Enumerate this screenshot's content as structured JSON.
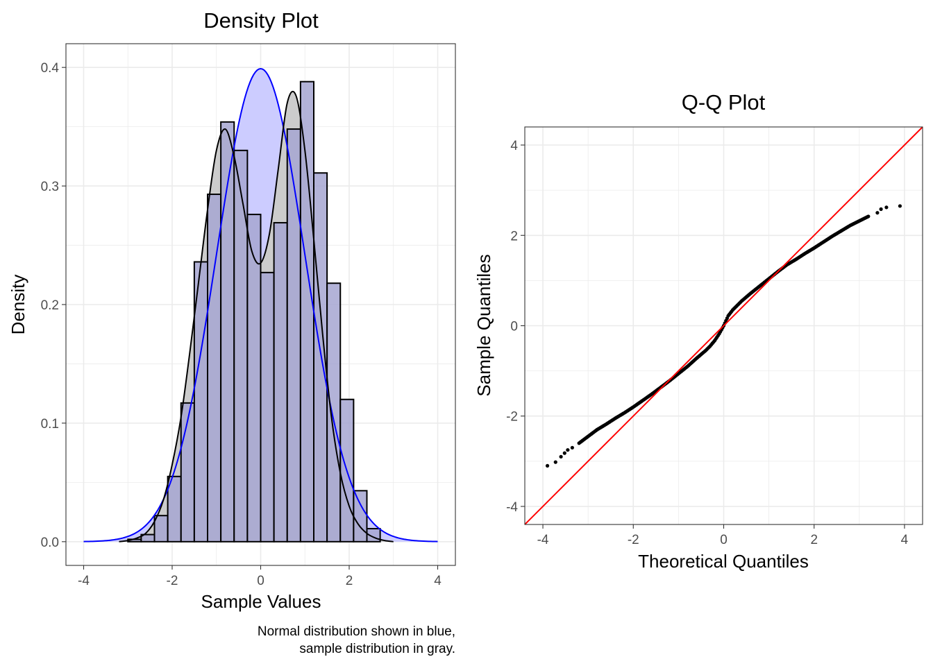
{
  "colors": {
    "normal_curve": "#0000ff",
    "normal_fill": "#ccccff",
    "sample_fill": "#cccccc",
    "histogram_fill": "#a6a6d1",
    "reference_line": "#ff0000",
    "points": "#000000",
    "grid": "#ebebeb"
  },
  "chart_data": [
    {
      "type": "bar",
      "title": "Density Plot",
      "xlabel": "Sample Values",
      "ylabel": "Density",
      "caption_lines": [
        "Normal distribution shown in blue,",
        "sample distribution in gray."
      ],
      "xlim": [
        -4.4,
        4.4
      ],
      "ylim": [
        -0.02,
        0.42
      ],
      "x_ticks": [
        -4,
        -2,
        0,
        2,
        4
      ],
      "x_tick_labels": [
        "-4",
        "-2",
        "0",
        "2",
        "4"
      ],
      "y_ticks": [
        0,
        0.1,
        0.2,
        0.3,
        0.4
      ],
      "y_tick_labels": [
        "0.0",
        "0.1",
        "0.2",
        "0.3",
        "0.4"
      ],
      "grid": true,
      "bin_width": 0.3,
      "bin_centers": [
        -2.85,
        -2.55,
        -2.25,
        -1.95,
        -1.65,
        -1.35,
        -1.05,
        -0.75,
        -0.45,
        -0.15,
        0.15,
        0.45,
        0.75,
        1.05,
        1.35,
        1.65,
        1.95,
        2.25,
        2.55
      ],
      "bin_densities": [
        0.002,
        0.006,
        0.022,
        0.055,
        0.117,
        0.236,
        0.293,
        0.354,
        0.33,
        0.276,
        0.227,
        0.269,
        0.348,
        0.388,
        0.311,
        0.218,
        0.12,
        0.043,
        0.011
      ],
      "sample_density": {
        "x": [
          -3.2,
          -3.0,
          -2.8,
          -2.6,
          -2.4,
          -2.2,
          -2.0,
          -1.8,
          -1.6,
          -1.4,
          -1.2,
          -1.0,
          -0.8,
          -0.6,
          -0.4,
          -0.2,
          0.0,
          0.2,
          0.4,
          0.6,
          0.8,
          1.0,
          1.2,
          1.4,
          1.6,
          1.8,
          2.0,
          2.2,
          2.4,
          2.6,
          2.8,
          3.0
        ],
        "y": [
          0.0,
          0.001,
          0.003,
          0.007,
          0.017,
          0.035,
          0.065,
          0.105,
          0.16,
          0.22,
          0.28,
          0.33,
          0.348,
          0.325,
          0.285,
          0.245,
          0.235,
          0.26,
          0.315,
          0.37,
          0.376,
          0.33,
          0.255,
          0.175,
          0.105,
          0.058,
          0.03,
          0.015,
          0.007,
          0.003,
          0.001,
          0.0
        ]
      },
      "normal_density": {
        "mean": 0,
        "sd": 1,
        "x_range": [
          -4,
          4
        ]
      }
    },
    {
      "type": "scatter",
      "title": "Q-Q Plot",
      "xlabel": "Theoretical Quantiles",
      "ylabel": "Sample Quantiles",
      "xlim": [
        -4.4,
        4.4
      ],
      "ylim": [
        -4.4,
        4.4
      ],
      "x_ticks": [
        -4,
        -2,
        0,
        2,
        4
      ],
      "x_tick_labels": [
        "-4",
        "-2",
        "0",
        "2",
        "4"
      ],
      "y_ticks": [
        -4,
        -2,
        0,
        2,
        4
      ],
      "y_tick_labels": [
        "-4",
        "-2",
        "0",
        "2",
        "4"
      ],
      "grid": true,
      "reference_line": {
        "slope": 1,
        "intercept": 0
      },
      "points": [
        [
          -3.9,
          -3.1
        ],
        [
          -3.72,
          -3.02
        ],
        [
          -3.6,
          -2.9
        ],
        [
          -3.52,
          -2.82
        ],
        [
          -3.45,
          -2.75
        ],
        [
          -3.35,
          -2.7
        ],
        [
          -3.2,
          -2.6
        ],
        [
          -3.0,
          -2.45
        ],
        [
          -2.8,
          -2.3
        ],
        [
          -2.6,
          -2.18
        ],
        [
          -2.4,
          -2.05
        ],
        [
          -2.2,
          -1.93
        ],
        [
          -2.0,
          -1.8
        ],
        [
          -1.8,
          -1.66
        ],
        [
          -1.6,
          -1.52
        ],
        [
          -1.4,
          -1.37
        ],
        [
          -1.2,
          -1.22
        ],
        [
          -1.0,
          -1.06
        ],
        [
          -0.8,
          -0.9
        ],
        [
          -0.6,
          -0.72
        ],
        [
          -0.4,
          -0.55
        ],
        [
          -0.3,
          -0.45
        ],
        [
          -0.2,
          -0.33
        ],
        [
          -0.1,
          -0.18
        ],
        [
          0.0,
          0.0
        ],
        [
          0.1,
          0.22
        ],
        [
          0.2,
          0.35
        ],
        [
          0.4,
          0.55
        ],
        [
          0.6,
          0.72
        ],
        [
          0.8,
          0.88
        ],
        [
          1.0,
          1.04
        ],
        [
          1.2,
          1.2
        ],
        [
          1.4,
          1.35
        ],
        [
          1.6,
          1.47
        ],
        [
          1.8,
          1.6
        ],
        [
          2.0,
          1.72
        ],
        [
          2.2,
          1.85
        ],
        [
          2.4,
          1.98
        ],
        [
          2.6,
          2.1
        ],
        [
          2.8,
          2.22
        ],
        [
          3.0,
          2.32
        ],
        [
          3.2,
          2.42
        ],
        [
          3.4,
          2.5
        ],
        [
          3.48,
          2.58
        ],
        [
          3.6,
          2.62
        ],
        [
          3.9,
          2.65
        ]
      ]
    }
  ]
}
